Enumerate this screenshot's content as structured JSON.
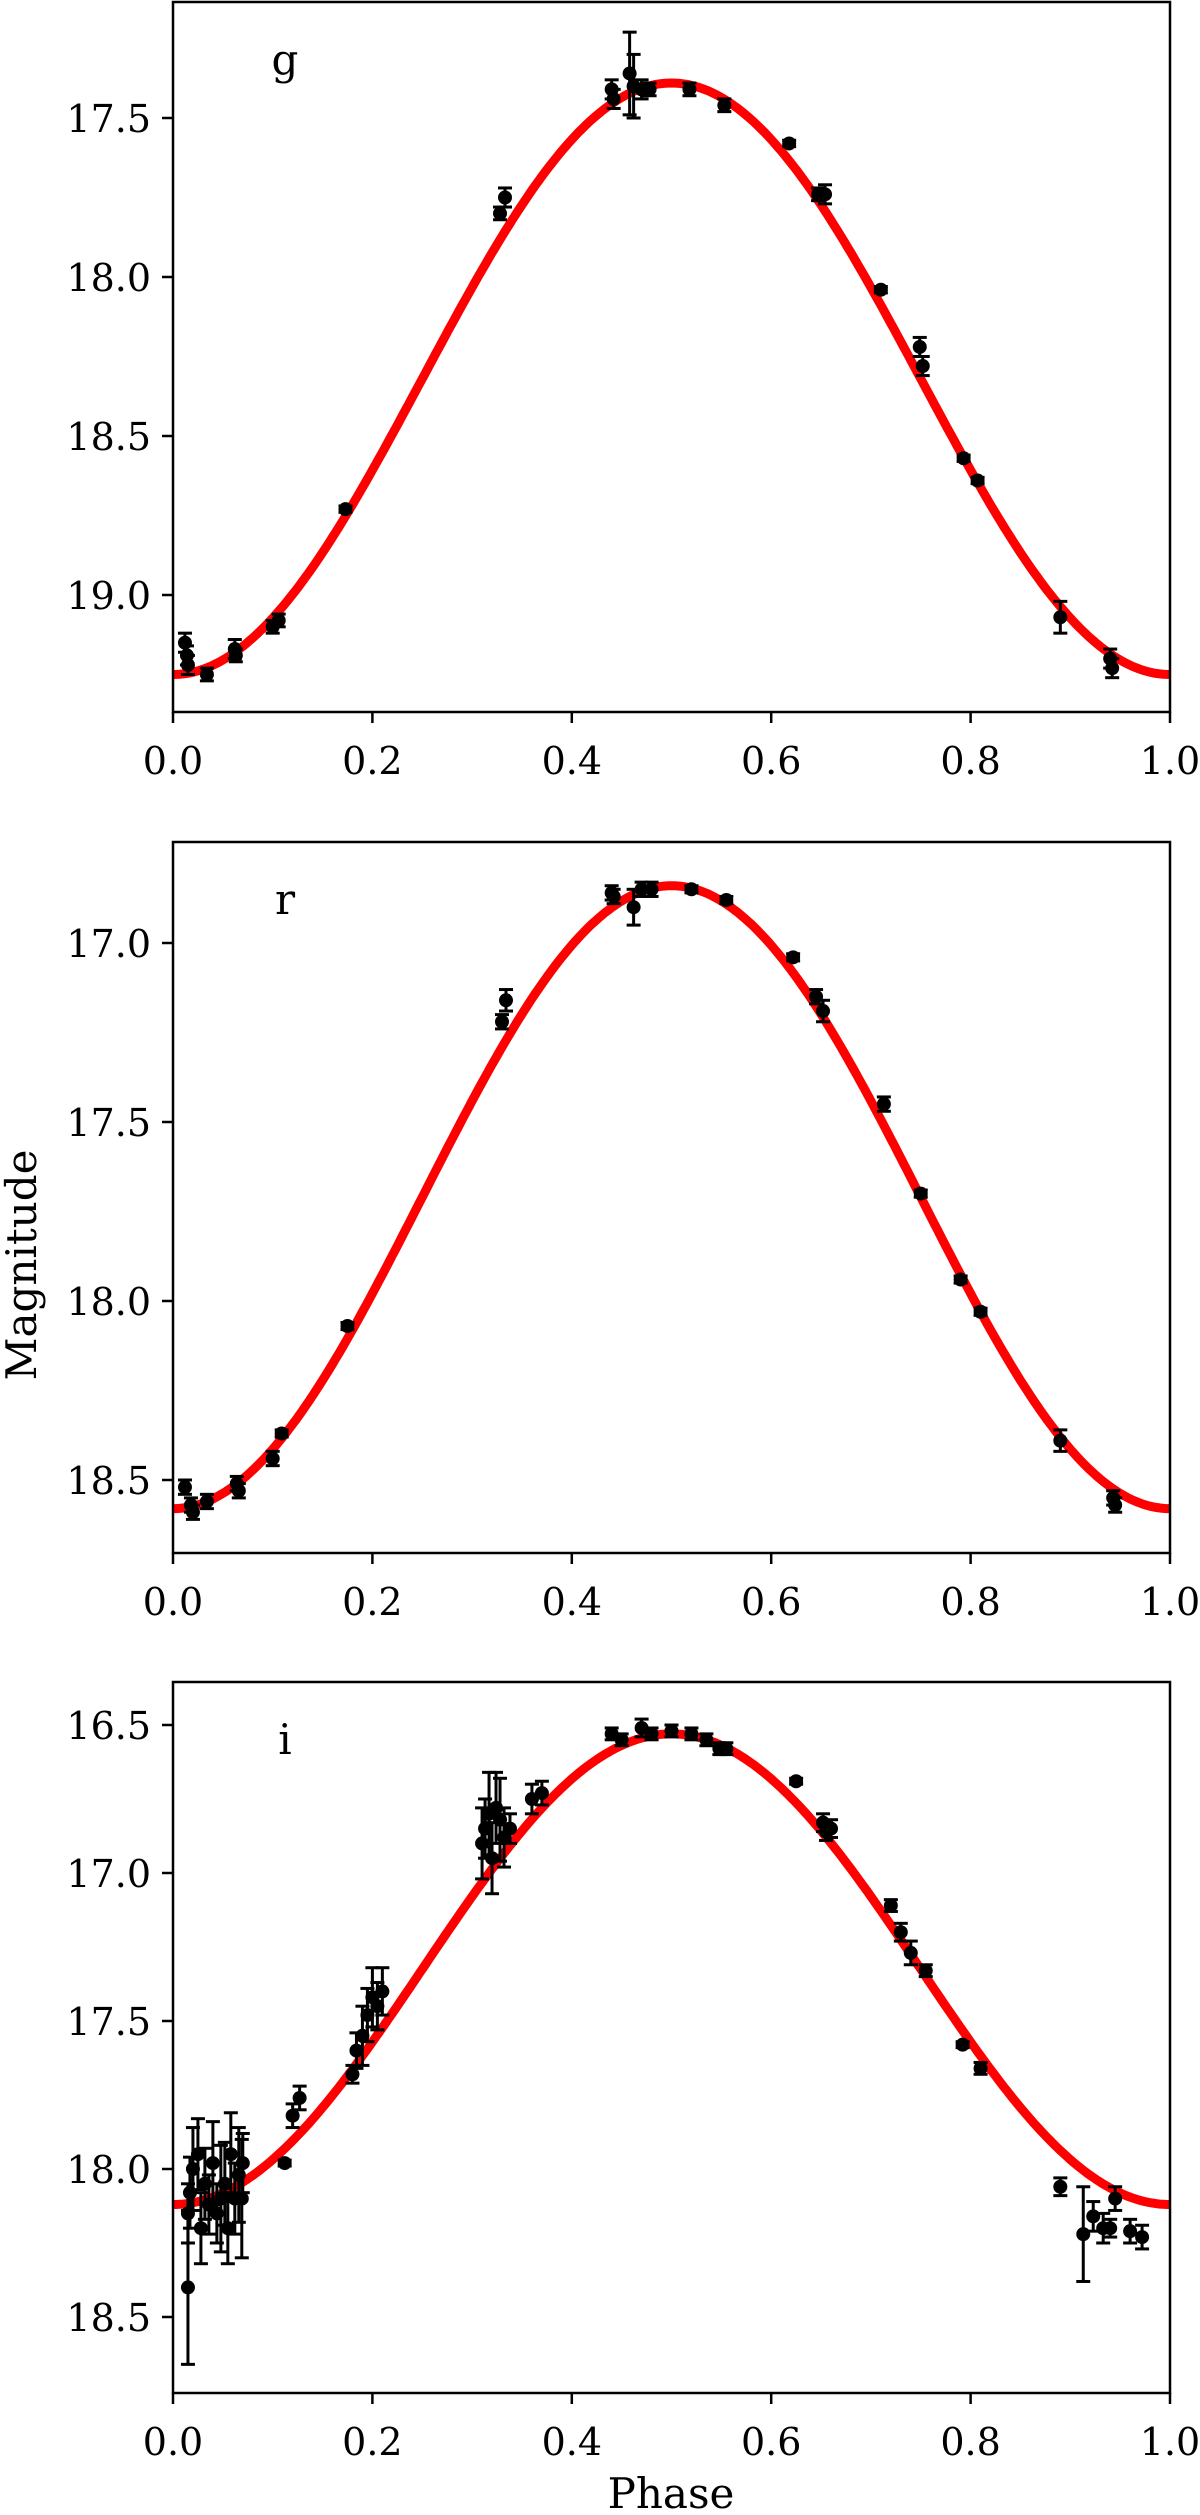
{
  "figure": {
    "xlabel": "Phase",
    "ylabel": "Magnitude",
    "fit_color": "#ff0000",
    "point_color": "#000000"
  },
  "chart_data": [
    {
      "type": "scatter",
      "panel_label": "g",
      "title": "",
      "xlabel": "",
      "ylabel": "",
      "xlim": [
        0.0,
        1.0
      ],
      "ylim": [
        19.37,
        17.13
      ],
      "y_inverted": true,
      "xticks": [
        "0.0",
        "0.2",
        "0.4",
        "0.6",
        "0.8",
        "1.0"
      ],
      "yticks": [
        "17.5",
        "18.0",
        "18.5",
        "19.0"
      ],
      "grid": false,
      "fit": {
        "min_mag": 19.25,
        "max_mag": 17.39,
        "peak_phase": 0.5
      },
      "points": [
        {
          "x": 0.012,
          "y": 19.15,
          "err": 0.03
        },
        {
          "x": 0.014,
          "y": 19.19,
          "err": 0.03
        },
        {
          "x": 0.015,
          "y": 19.22,
          "err": 0.03
        },
        {
          "x": 0.034,
          "y": 19.25,
          "err": 0.02
        },
        {
          "x": 0.062,
          "y": 19.17,
          "err": 0.03
        },
        {
          "x": 0.063,
          "y": 19.19,
          "err": 0.02
        },
        {
          "x": 0.1,
          "y": 19.1,
          "err": 0.02
        },
        {
          "x": 0.106,
          "y": 19.08,
          "err": 0.02
        },
        {
          "x": 0.173,
          "y": 18.73,
          "err": 0.01
        },
        {
          "x": 0.328,
          "y": 17.8,
          "err": 0.02
        },
        {
          "x": 0.333,
          "y": 17.75,
          "err": 0.03
        },
        {
          "x": 0.44,
          "y": 17.41,
          "err": 0.03
        },
        {
          "x": 0.442,
          "y": 17.44,
          "err": 0.03
        },
        {
          "x": 0.458,
          "y": 17.36,
          "err": 0.13
        },
        {
          "x": 0.462,
          "y": 17.4,
          "err": 0.1
        },
        {
          "x": 0.47,
          "y": 17.41,
          "err": 0.03
        },
        {
          "x": 0.478,
          "y": 17.41,
          "err": 0.02
        },
        {
          "x": 0.518,
          "y": 17.41,
          "err": 0.02
        },
        {
          "x": 0.553,
          "y": 17.46,
          "err": 0.02
        },
        {
          "x": 0.618,
          "y": 17.58,
          "err": 0.01
        },
        {
          "x": 0.647,
          "y": 17.74,
          "err": 0.02
        },
        {
          "x": 0.654,
          "y": 17.74,
          "err": 0.03
        },
        {
          "x": 0.71,
          "y": 18.04,
          "err": 0.01
        },
        {
          "x": 0.749,
          "y": 18.22,
          "err": 0.03
        },
        {
          "x": 0.752,
          "y": 18.28,
          "err": 0.03
        },
        {
          "x": 0.793,
          "y": 18.57,
          "err": 0.01
        },
        {
          "x": 0.807,
          "y": 18.64,
          "err": 0.01
        },
        {
          "x": 0.89,
          "y": 19.07,
          "err": 0.05
        },
        {
          "x": 0.94,
          "y": 19.2,
          "err": 0.03
        },
        {
          "x": 0.942,
          "y": 19.23,
          "err": 0.03
        }
      ]
    },
    {
      "type": "scatter",
      "panel_label": "r",
      "title": "",
      "xlabel": "",
      "ylabel": "Magnitude",
      "xlim": [
        0.0,
        1.0
      ],
      "ylim": [
        18.7,
        16.72
      ],
      "y_inverted": true,
      "xticks": [
        "0.0",
        "0.2",
        "0.4",
        "0.6",
        "0.8",
        "1.0"
      ],
      "yticks": [
        "17.0",
        "17.5",
        "18.0",
        "18.5"
      ],
      "grid": false,
      "fit": {
        "min_mag": 18.58,
        "max_mag": 16.84,
        "peak_phase": 0.5
      },
      "points": [
        {
          "x": 0.012,
          "y": 18.52,
          "err": 0.02
        },
        {
          "x": 0.018,
          "y": 18.57,
          "err": 0.02
        },
        {
          "x": 0.02,
          "y": 18.59,
          "err": 0.02
        },
        {
          "x": 0.034,
          "y": 18.56,
          "err": 0.02
        },
        {
          "x": 0.064,
          "y": 18.51,
          "err": 0.02
        },
        {
          "x": 0.066,
          "y": 18.53,
          "err": 0.02
        },
        {
          "x": 0.1,
          "y": 18.44,
          "err": 0.02
        },
        {
          "x": 0.109,
          "y": 18.37,
          "err": 0.01
        },
        {
          "x": 0.175,
          "y": 18.07,
          "err": 0.01
        },
        {
          "x": 0.33,
          "y": 17.22,
          "err": 0.02
        },
        {
          "x": 0.334,
          "y": 17.16,
          "err": 0.03
        },
        {
          "x": 0.44,
          "y": 16.86,
          "err": 0.02
        },
        {
          "x": 0.442,
          "y": 16.87,
          "err": 0.02
        },
        {
          "x": 0.462,
          "y": 16.9,
          "err": 0.05
        },
        {
          "x": 0.47,
          "y": 16.85,
          "err": 0.02
        },
        {
          "x": 0.48,
          "y": 16.85,
          "err": 0.02
        },
        {
          "x": 0.52,
          "y": 16.85,
          "err": 0.01
        },
        {
          "x": 0.555,
          "y": 16.88,
          "err": 0.01
        },
        {
          "x": 0.622,
          "y": 17.04,
          "err": 0.01
        },
        {
          "x": 0.645,
          "y": 17.15,
          "err": 0.02
        },
        {
          "x": 0.652,
          "y": 17.19,
          "err": 0.03
        },
        {
          "x": 0.713,
          "y": 17.45,
          "err": 0.02
        },
        {
          "x": 0.75,
          "y": 17.7,
          "err": 0.01
        },
        {
          "x": 0.79,
          "y": 17.94,
          "err": 0.01
        },
        {
          "x": 0.81,
          "y": 18.03,
          "err": 0.01
        },
        {
          "x": 0.89,
          "y": 18.39,
          "err": 0.03
        },
        {
          "x": 0.943,
          "y": 18.55,
          "err": 0.02
        },
        {
          "x": 0.945,
          "y": 18.57,
          "err": 0.02
        }
      ]
    },
    {
      "type": "scatter",
      "panel_label": "i",
      "title": "",
      "xlabel": "Phase",
      "ylabel": "",
      "xlim": [
        0.0,
        1.0
      ],
      "ylim": [
        18.76,
        16.36
      ],
      "y_inverted": true,
      "xticks": [
        "0.0",
        "0.2",
        "0.4",
        "0.6",
        "0.8",
        "1.0"
      ],
      "yticks": [
        "16.5",
        "17.0",
        "17.5",
        "18.0",
        "18.5"
      ],
      "grid": false,
      "fit": {
        "min_mag": 18.12,
        "max_mag": 16.53,
        "peak_phase": 0.5
      },
      "points": [
        {
          "x": 0.015,
          "y": 18.4,
          "err": 0.26
        },
        {
          "x": 0.015,
          "y": 18.15,
          "err": 0.1
        },
        {
          "x": 0.017,
          "y": 18.08,
          "err": 0.12
        },
        {
          "x": 0.02,
          "y": 18.0,
          "err": 0.14
        },
        {
          "x": 0.025,
          "y": 17.95,
          "err": 0.12
        },
        {
          "x": 0.028,
          "y": 18.2,
          "err": 0.12
        },
        {
          "x": 0.032,
          "y": 18.05,
          "err": 0.12
        },
        {
          "x": 0.036,
          "y": 18.12,
          "err": 0.1
        },
        {
          "x": 0.04,
          "y": 17.98,
          "err": 0.14
        },
        {
          "x": 0.044,
          "y": 18.15,
          "err": 0.1
        },
        {
          "x": 0.048,
          "y": 18.1,
          "err": 0.18
        },
        {
          "x": 0.052,
          "y": 18.05,
          "err": 0.14
        },
        {
          "x": 0.055,
          "y": 18.2,
          "err": 0.12
        },
        {
          "x": 0.058,
          "y": 17.95,
          "err": 0.14
        },
        {
          "x": 0.062,
          "y": 18.1,
          "err": 0.12
        },
        {
          "x": 0.066,
          "y": 18.02,
          "err": 0.16
        },
        {
          "x": 0.069,
          "y": 18.1,
          "err": 0.2
        },
        {
          "x": 0.07,
          "y": 17.98,
          "err": 0.1
        },
        {
          "x": 0.112,
          "y": 17.98,
          "err": 0.01
        },
        {
          "x": 0.12,
          "y": 17.82,
          "err": 0.04
        },
        {
          "x": 0.127,
          "y": 17.76,
          "err": 0.04
        },
        {
          "x": 0.18,
          "y": 17.68,
          "err": 0.03
        },
        {
          "x": 0.184,
          "y": 17.6,
          "err": 0.06
        },
        {
          "x": 0.19,
          "y": 17.55,
          "err": 0.1
        },
        {
          "x": 0.195,
          "y": 17.48,
          "err": 0.09
        },
        {
          "x": 0.2,
          "y": 17.42,
          "err": 0.1
        },
        {
          "x": 0.205,
          "y": 17.45,
          "err": 0.08
        },
        {
          "x": 0.21,
          "y": 17.4,
          "err": 0.08
        },
        {
          "x": 0.31,
          "y": 16.9,
          "err": 0.12
        },
        {
          "x": 0.313,
          "y": 16.85,
          "err": 0.1
        },
        {
          "x": 0.317,
          "y": 16.8,
          "err": 0.14
        },
        {
          "x": 0.32,
          "y": 16.95,
          "err": 0.12
        },
        {
          "x": 0.324,
          "y": 16.78,
          "err": 0.12
        },
        {
          "x": 0.328,
          "y": 16.82,
          "err": 0.14
        },
        {
          "x": 0.332,
          "y": 16.88,
          "err": 0.1
        },
        {
          "x": 0.338,
          "y": 16.85,
          "err": 0.05
        },
        {
          "x": 0.36,
          "y": 16.75,
          "err": 0.05
        },
        {
          "x": 0.37,
          "y": 16.73,
          "err": 0.04
        },
        {
          "x": 0.44,
          "y": 16.53,
          "err": 0.02
        },
        {
          "x": 0.45,
          "y": 16.55,
          "err": 0.02
        },
        {
          "x": 0.47,
          "y": 16.51,
          "err": 0.03
        },
        {
          "x": 0.48,
          "y": 16.53,
          "err": 0.02
        },
        {
          "x": 0.5,
          "y": 16.52,
          "err": 0.02
        },
        {
          "x": 0.52,
          "y": 16.53,
          "err": 0.02
        },
        {
          "x": 0.535,
          "y": 16.55,
          "err": 0.02
        },
        {
          "x": 0.548,
          "y": 16.58,
          "err": 0.02
        },
        {
          "x": 0.555,
          "y": 16.58,
          "err": 0.02
        },
        {
          "x": 0.625,
          "y": 16.69,
          "err": 0.01
        },
        {
          "x": 0.652,
          "y": 16.83,
          "err": 0.03
        },
        {
          "x": 0.655,
          "y": 16.86,
          "err": 0.03
        },
        {
          "x": 0.66,
          "y": 16.85,
          "err": 0.03
        },
        {
          "x": 0.72,
          "y": 17.11,
          "err": 0.02
        },
        {
          "x": 0.73,
          "y": 17.2,
          "err": 0.03
        },
        {
          "x": 0.74,
          "y": 17.27,
          "err": 0.04
        },
        {
          "x": 0.755,
          "y": 17.33,
          "err": 0.02
        },
        {
          "x": 0.792,
          "y": 17.58,
          "err": 0.01
        },
        {
          "x": 0.81,
          "y": 17.66,
          "err": 0.02
        },
        {
          "x": 0.89,
          "y": 18.06,
          "err": 0.03
        },
        {
          "x": 0.913,
          "y": 18.22,
          "err": 0.16
        },
        {
          "x": 0.923,
          "y": 18.16,
          "err": 0.05
        },
        {
          "x": 0.933,
          "y": 18.2,
          "err": 0.05
        },
        {
          "x": 0.94,
          "y": 18.2,
          "err": 0.03
        },
        {
          "x": 0.945,
          "y": 18.1,
          "err": 0.04
        },
        {
          "x": 0.96,
          "y": 18.21,
          "err": 0.04
        },
        {
          "x": 0.972,
          "y": 18.23,
          "err": 0.04
        }
      ]
    }
  ]
}
